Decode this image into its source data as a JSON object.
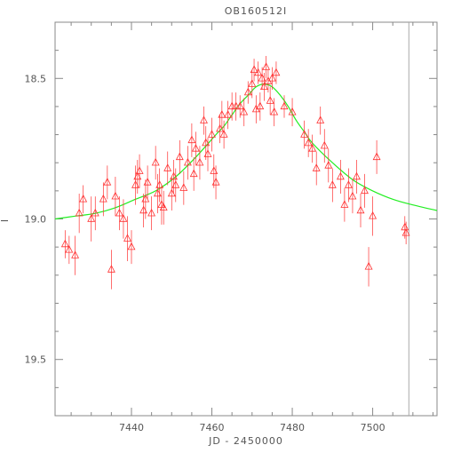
{
  "chart_data": {
    "type": "scatter",
    "title": "OB160512I",
    "xlabel": "JD - 2450000",
    "ylabel": "I",
    "xlim": [
      7421,
      7516
    ],
    "ylim": [
      19.7,
      18.3
    ],
    "y_inverted": true,
    "x_ticks": [
      7440,
      7460,
      7480,
      7500
    ],
    "x_tick_labels": [
      "7440",
      "7460",
      "7480",
      "7500"
    ],
    "y_ticks": [
      18.5,
      19.0,
      19.5
    ],
    "y_tick_labels": [
      "18.5",
      "19.0",
      "19.5"
    ],
    "grid": false,
    "legend": "none",
    "colors": {
      "data": "#ff3030",
      "model": "#22ee22",
      "axes": "#888888",
      "marker_line": "#aaaaaa"
    },
    "marker_line_x": 7509,
    "series": [
      {
        "kind": "points_with_errorbars",
        "x": [
          7423.5,
          7424.5,
          7426,
          7427,
          7428,
          7430,
          7431,
          7433,
          7434,
          7435,
          7436,
          7437,
          7438,
          7439,
          7440,
          7441,
          7441.5,
          7442,
          7443,
          7443.5,
          7444,
          7445,
          7446,
          7446.5,
          7447,
          7447.5,
          7448,
          7449,
          7450,
          7450.5,
          7451,
          7452,
          7453,
          7454,
          7455,
          7455.5,
          7456,
          7457,
          7458,
          7458.5,
          7459,
          7460,
          7460.5,
          7461,
          7462,
          7462.5,
          7463,
          7464,
          7465,
          7466,
          7467,
          7468,
          7469,
          7470,
          7470.5,
          7471,
          7471.5,
          7472,
          7472.5,
          7473,
          7473.5,
          7474,
          7474.5,
          7475,
          7475.5,
          7476,
          7478,
          7480,
          7483,
          7484,
          7485,
          7486,
          7487,
          7488,
          7489,
          7490,
          7492,
          7493,
          7494,
          7495,
          7496,
          7497,
          7498,
          7499,
          7500,
          7501,
          7508,
          7508.3
        ],
        "y": [
          19.09,
          19.11,
          19.13,
          18.98,
          18.93,
          19.0,
          18.98,
          18.93,
          18.87,
          19.18,
          18.92,
          18.98,
          19.0,
          19.07,
          19.1,
          18.88,
          18.85,
          18.83,
          18.97,
          18.93,
          18.87,
          18.98,
          18.8,
          18.91,
          18.88,
          18.95,
          18.96,
          18.82,
          18.91,
          18.85,
          18.88,
          18.78,
          18.89,
          18.8,
          18.72,
          18.84,
          18.75,
          18.8,
          18.65,
          18.73,
          18.77,
          18.7,
          18.83,
          18.87,
          18.68,
          18.63,
          18.7,
          18.63,
          18.6,
          18.6,
          18.6,
          18.62,
          18.55,
          18.52,
          18.47,
          18.61,
          18.48,
          18.6,
          18.5,
          18.53,
          18.46,
          18.51,
          18.58,
          18.5,
          18.62,
          18.48,
          18.6,
          18.62,
          18.7,
          18.73,
          18.75,
          18.82,
          18.65,
          18.74,
          18.81,
          18.88,
          18.85,
          18.95,
          18.88,
          18.92,
          18.85,
          18.97,
          18.9,
          19.17,
          18.99,
          18.78,
          19.03,
          19.05
        ],
        "err": [
          0.05,
          0.05,
          0.07,
          0.07,
          0.05,
          0.08,
          0.06,
          0.06,
          0.06,
          0.07,
          0.07,
          0.06,
          0.07,
          0.08,
          0.06,
          0.07,
          0.06,
          0.06,
          0.06,
          0.07,
          0.06,
          0.06,
          0.06,
          0.07,
          0.06,
          0.07,
          0.06,
          0.06,
          0.06,
          0.06,
          0.06,
          0.06,
          0.06,
          0.06,
          0.06,
          0.06,
          0.06,
          0.06,
          0.05,
          0.06,
          0.06,
          0.06,
          0.06,
          0.06,
          0.05,
          0.05,
          0.05,
          0.05,
          0.05,
          0.05,
          0.04,
          0.05,
          0.04,
          0.05,
          0.04,
          0.05,
          0.04,
          0.05,
          0.04,
          0.05,
          0.04,
          0.04,
          0.05,
          0.04,
          0.05,
          0.04,
          0.04,
          0.05,
          0.05,
          0.05,
          0.05,
          0.06,
          0.05,
          0.06,
          0.06,
          0.06,
          0.06,
          0.06,
          0.06,
          0.06,
          0.06,
          0.06,
          0.06,
          0.07,
          0.07,
          0.06,
          0.04,
          0.04
        ]
      },
      {
        "kind": "model_curve",
        "x": [
          7421,
          7426,
          7431,
          7436,
          7441,
          7446,
          7451,
          7456,
          7461,
          7463,
          7465,
          7467,
          7469,
          7471,
          7473,
          7475,
          7477,
          7479,
          7481,
          7483,
          7485,
          7490,
          7495,
          7500,
          7505,
          7510,
          7516
        ],
        "y": [
          19.0,
          18.99,
          18.98,
          18.96,
          18.93,
          18.9,
          18.85,
          18.78,
          18.7,
          18.67,
          18.63,
          18.59,
          18.56,
          18.53,
          18.52,
          18.53,
          18.56,
          18.6,
          18.65,
          18.69,
          18.73,
          18.8,
          18.86,
          18.9,
          18.93,
          18.95,
          18.97
        ]
      }
    ]
  }
}
